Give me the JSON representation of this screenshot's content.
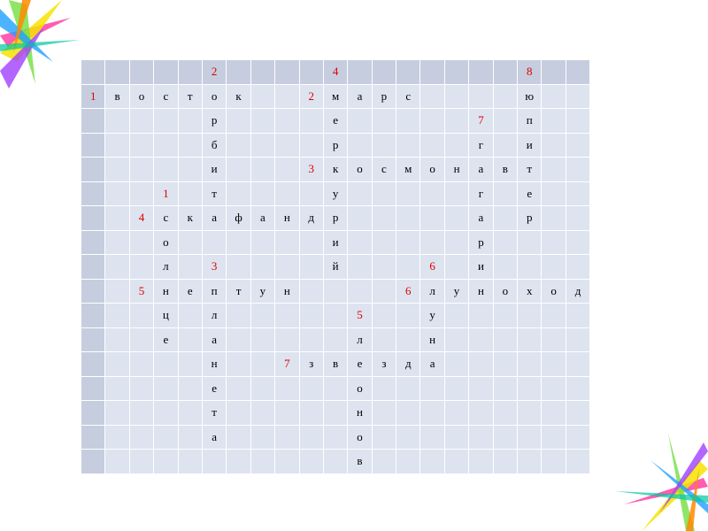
{
  "grid": {
    "rows": [
      [
        "",
        "",
        "",
        "",
        "",
        "2",
        "",
        "",
        "",
        "",
        "4",
        "",
        "",
        "",
        "",
        "",
        "",
        "",
        "8",
        "",
        ""
      ],
      [
        "1",
        "в",
        "о",
        "с",
        "т",
        "о",
        "к",
        "",
        "",
        "2",
        "м",
        "а",
        "р",
        "с",
        "",
        "",
        "",
        "",
        "ю",
        "",
        ""
      ],
      [
        "",
        "",
        "",
        "",
        "",
        "р",
        "",
        "",
        "",
        "",
        "е",
        "",
        "",
        "",
        "",
        "",
        "7",
        "",
        "п",
        "",
        ""
      ],
      [
        "",
        "",
        "",
        "",
        "",
        "б",
        "",
        "",
        "",
        "",
        "р",
        "",
        "",
        "",
        "",
        "",
        "г",
        "",
        "и",
        "",
        ""
      ],
      [
        "",
        "",
        "",
        "",
        "",
        "и",
        "",
        "",
        "",
        "3",
        "к",
        "о",
        "с",
        "м",
        "о",
        "н",
        "а",
        "в",
        "т",
        "",
        ""
      ],
      [
        "",
        "",
        "",
        "1",
        "",
        "т",
        "",
        "",
        "",
        "",
        "у",
        "",
        "",
        "",
        "",
        "",
        "г",
        "",
        "е",
        "",
        ""
      ],
      [
        "",
        "",
        "4",
        "с",
        "к",
        "а",
        "ф",
        "а",
        "н",
        "д",
        "р",
        "",
        "",
        "",
        "",
        "",
        "а",
        "",
        "р",
        "",
        ""
      ],
      [
        "",
        "",
        "",
        "о",
        "",
        "",
        "",
        "",
        "",
        "",
        "и",
        "",
        "",
        "",
        "",
        "",
        "р",
        "",
        "",
        "",
        ""
      ],
      [
        "",
        "",
        "",
        "л",
        "",
        "3",
        "",
        "",
        "",
        "",
        "й",
        "",
        "",
        "",
        "6",
        "",
        "и",
        "",
        "",
        "",
        ""
      ],
      [
        "",
        "",
        "5",
        "н",
        "е",
        "п",
        "т",
        "у",
        "н",
        "",
        "",
        "",
        "",
        "6",
        "л",
        "у",
        "н",
        "о",
        "х",
        "о",
        "д"
      ],
      [
        "",
        "",
        "",
        "ц",
        "",
        "л",
        "",
        "",
        "",
        "",
        "",
        "5",
        "",
        "",
        "у",
        "",
        "",
        "",
        "",
        "",
        ""
      ],
      [
        "",
        "",
        "",
        "е",
        "",
        "а",
        "",
        "",
        "",
        "",
        "",
        "л",
        "",
        "",
        "н",
        "",
        "",
        "",
        "",
        "",
        ""
      ],
      [
        "",
        "",
        "",
        "",
        "",
        "н",
        "",
        "",
        "7",
        "з",
        "в",
        "е",
        "з",
        "д",
        "а",
        "",
        "",
        "",
        "",
        "",
        ""
      ],
      [
        "",
        "",
        "",
        "",
        "",
        "е",
        "",
        "",
        "",
        "",
        "",
        "о",
        "",
        "",
        "",
        "",
        "",
        "",
        "",
        "",
        ""
      ],
      [
        "",
        "",
        "",
        "",
        "",
        "т",
        "",
        "",
        "",
        "",
        "",
        "н",
        "",
        "",
        "",
        "",
        "",
        "",
        "",
        "",
        ""
      ],
      [
        "",
        "",
        "",
        "",
        "",
        "а",
        "",
        "",
        "",
        "",
        "",
        "о",
        "",
        "",
        "",
        "",
        "",
        "",
        "",
        "",
        ""
      ],
      [
        "",
        "",
        "",
        "",
        "",
        "",
        "",
        "",
        "",
        "",
        "",
        "в",
        "",
        "",
        "",
        "",
        "",
        "",
        "",
        "",
        ""
      ]
    ],
    "colors": {
      "header": "#c6cdde",
      "cell": "#dde3ef",
      "number": "#e00000"
    }
  }
}
